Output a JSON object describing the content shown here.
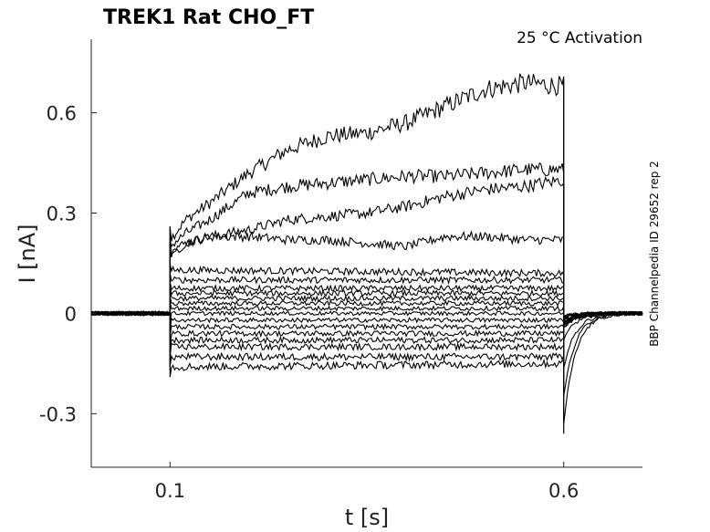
{
  "chart_data": {
    "type": "line",
    "title": "TREK1  Rat  CHO_FT",
    "annotation": "25 °C  Activation",
    "side_label": "BBP Channelpedia ID 29652 rep 2",
    "xlabel": "t [s]",
    "ylabel": "I [nA]",
    "xlim": [
      0.0,
      0.7
    ],
    "ylim": [
      -0.46,
      0.82
    ],
    "xticks": [
      0.1,
      0.6
    ],
    "xtick_labels": [
      "0.1",
      "0.6"
    ],
    "yticks": [
      -0.3,
      0,
      0.3,
      0.6
    ],
    "ytick_labels": [
      "-0.3",
      "0",
      "0.3",
      "0.6"
    ],
    "grid": false,
    "stimulus": {
      "start": 0.1,
      "end": 0.6
    },
    "series": [
      {
        "x": [
          0.1,
          0.12,
          0.15,
          0.2,
          0.25,
          0.3,
          0.35,
          0.4,
          0.45,
          0.5,
          0.55,
          0.6
        ],
        "values": [
          0.22,
          0.28,
          0.33,
          0.42,
          0.49,
          0.53,
          0.54,
          0.57,
          0.62,
          0.67,
          0.69,
          0.68
        ]
      },
      {
        "x": [
          0.1,
          0.12,
          0.15,
          0.2,
          0.25,
          0.3,
          0.35,
          0.4,
          0.45,
          0.5,
          0.55,
          0.6
        ],
        "values": [
          0.2,
          0.24,
          0.28,
          0.36,
          0.38,
          0.39,
          0.4,
          0.41,
          0.41,
          0.42,
          0.43,
          0.43
        ]
      },
      {
        "x": [
          0.1,
          0.12,
          0.15,
          0.2,
          0.25,
          0.3,
          0.35,
          0.4,
          0.45,
          0.5,
          0.55,
          0.6
        ],
        "values": [
          0.19,
          0.21,
          0.23,
          0.25,
          0.28,
          0.29,
          0.3,
          0.32,
          0.35,
          0.37,
          0.38,
          0.4
        ]
      },
      {
        "x": [
          0.1,
          0.12,
          0.15,
          0.2,
          0.25,
          0.3,
          0.35,
          0.4,
          0.45,
          0.5,
          0.55,
          0.6
        ],
        "values": [
          0.17,
          0.21,
          0.23,
          0.23,
          0.22,
          0.22,
          0.21,
          0.2,
          0.23,
          0.23,
          0.22,
          0.22
        ]
      },
      {
        "x": [
          0.1,
          0.6
        ],
        "values": [
          0.13,
          0.12
        ]
      },
      {
        "x": [
          0.1,
          0.6
        ],
        "values": [
          0.1,
          0.1
        ]
      },
      {
        "x": [
          0.1,
          0.6
        ],
        "values": [
          0.075,
          0.075
        ]
      },
      {
        "x": [
          0.1,
          0.6
        ],
        "values": [
          0.06,
          0.06
        ]
      },
      {
        "x": [
          0.1,
          0.6
        ],
        "values": [
          0.045,
          0.045
        ]
      },
      {
        "x": [
          0.1,
          0.6
        ],
        "values": [
          0.03,
          0.03
        ]
      },
      {
        "x": [
          0.1,
          0.6
        ],
        "values": [
          0.015,
          0.015
        ]
      },
      {
        "x": [
          0.1,
          0.6
        ],
        "values": [
          0.0,
          0.0
        ]
      },
      {
        "x": [
          0.1,
          0.6
        ],
        "values": [
          -0.02,
          -0.02
        ]
      },
      {
        "x": [
          0.1,
          0.6
        ],
        "values": [
          -0.04,
          -0.04
        ]
      },
      {
        "x": [
          0.1,
          0.6
        ],
        "values": [
          -0.06,
          -0.06
        ]
      },
      {
        "x": [
          0.1,
          0.6
        ],
        "values": [
          -0.08,
          -0.08
        ]
      },
      {
        "x": [
          0.1,
          0.6
        ],
        "values": [
          -0.1,
          -0.1
        ]
      },
      {
        "x": [
          0.1,
          0.6
        ],
        "values": [
          -0.13,
          -0.13
        ]
      },
      {
        "x": [
          0.1,
          0.6
        ],
        "values": [
          -0.16,
          -0.15
        ]
      }
    ]
  }
}
